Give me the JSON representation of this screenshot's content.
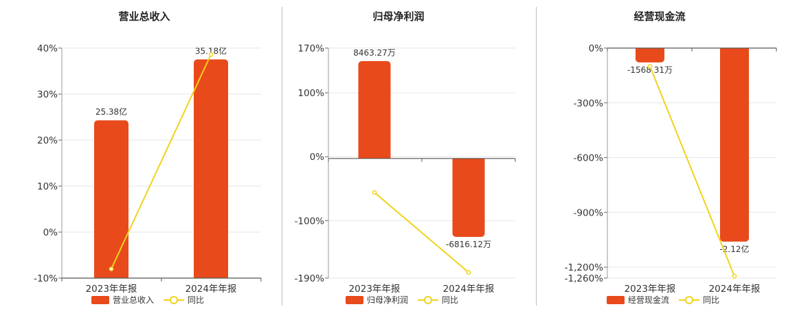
{
  "colors": {
    "bar": "#e84a1b",
    "line": "#f2d21a",
    "axis": "#333333",
    "grid": "#e6e6e6"
  },
  "legend": {
    "line_name": "同比"
  },
  "chart_data": [
    {
      "type": "bar",
      "title": "营业总收入",
      "categories": [
        "2023年年报",
        "2024年年报"
      ],
      "series": [
        {
          "name": "营业总收入",
          "values": [
            25.38,
            35.18
          ],
          "labels": [
            "25.38亿",
            "35.18亿"
          ]
        },
        {
          "name": "同比",
          "type": "line",
          "values": [
            -8,
            38.6
          ]
        }
      ],
      "bar_axis": [
        0,
        37
      ],
      "yoy_axis": {
        "range": [
          -10,
          40
        ],
        "ticks": [
          -10,
          0,
          10,
          20,
          30,
          40
        ],
        "tick_labels": [
          "-10%",
          "0%",
          "10%",
          "20%",
          "30%",
          "40%"
        ]
      }
    },
    {
      "type": "bar",
      "title": "归母净利润",
      "categories": [
        "2023年年报",
        "2024年年报"
      ],
      "series": [
        {
          "name": "归母净利润",
          "values": [
            8463.27,
            -6816.12
          ],
          "labels": [
            "8463.27万",
            "-6816.12万"
          ]
        },
        {
          "name": "同比",
          "type": "line",
          "values": [
            -56,
            -181
          ]
        }
      ],
      "bar_axis": [
        -10400,
        9600
      ],
      "yoy_axis": {
        "range": [
          -190,
          170
        ],
        "ticks": [
          -190,
          -100,
          0,
          100,
          170
        ],
        "tick_labels": [
          "-190%",
          "-100%",
          "0%",
          "100%",
          "170%"
        ]
      }
    },
    {
      "type": "bar",
      "title": "经营现金流",
      "categories": [
        "2023年年报",
        "2024年年报"
      ],
      "series": [
        {
          "name": "经营现金流",
          "values": [
            -1568.31,
            -21200
          ],
          "labels": [
            "-1568.31万",
            "-2.12亿"
          ]
        },
        {
          "name": "同比",
          "type": "line",
          "values": [
            -100,
            -1250
          ]
        }
      ],
      "bar_axis": [
        -25200,
        0
      ],
      "yoy_axis": {
        "range": [
          -1260,
          0
        ],
        "ticks": [
          -1260,
          -1200,
          -900,
          -600,
          -300,
          0
        ],
        "tick_labels": [
          "-1,260%",
          "-1,200%",
          "-900%",
          "-600%",
          "-300%",
          "0%"
        ]
      }
    }
  ]
}
